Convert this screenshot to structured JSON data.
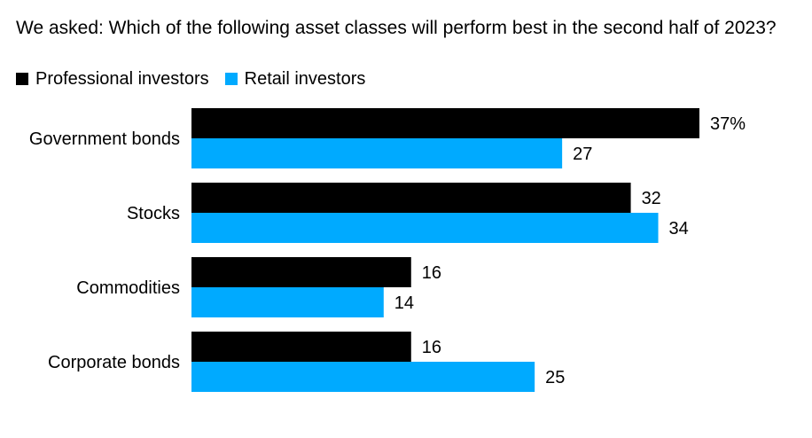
{
  "chart_data": {
    "type": "bar",
    "orientation": "horizontal",
    "title": "We asked: Which of the following asset classes will perform best in the second half of 2023?",
    "categories": [
      "Government bonds",
      "Stocks",
      "Commodities",
      "Corporate bonds"
    ],
    "series": [
      {
        "name": "Professional investors",
        "color": "#000000",
        "values": [
          37,
          32,
          16,
          16
        ]
      },
      {
        "name": "Retail investors",
        "color": "#00aaff",
        "values": [
          27,
          34,
          14,
          25
        ]
      }
    ],
    "value_labels": [
      [
        "37%",
        "27"
      ],
      [
        "32",
        "34"
      ],
      [
        "16",
        "14"
      ],
      [
        "16",
        "25"
      ]
    ],
    "xlim": [
      0,
      37
    ],
    "grid": false,
    "legend_position": "top-left"
  }
}
